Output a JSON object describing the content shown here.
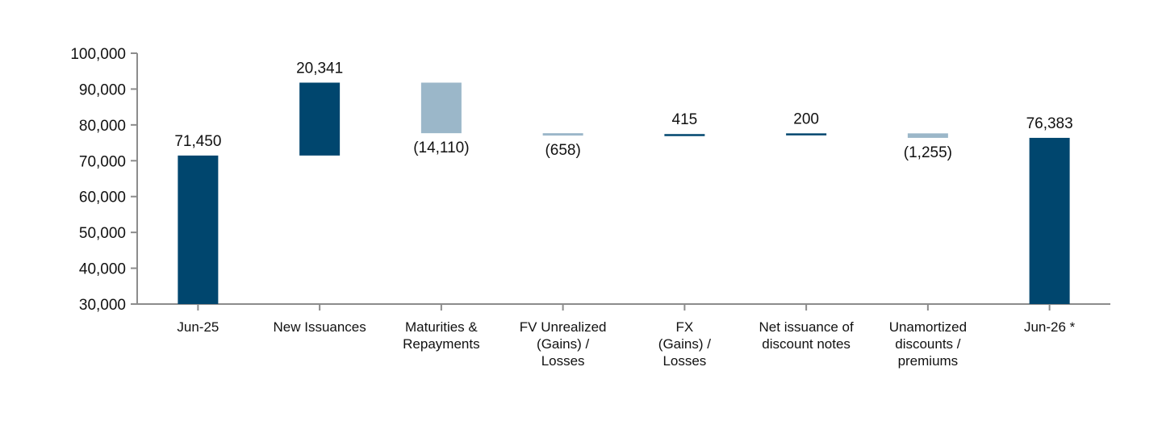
{
  "chart_data": {
    "type": "waterfall",
    "categories": [
      [
        "Jun-25"
      ],
      [
        "New Issuances"
      ],
      [
        "Maturities &",
        "Repayments"
      ],
      [
        "FV Unrealized",
        "(Gains) /",
        "Losses"
      ],
      [
        "FX",
        "(Gains) /",
        "Losses"
      ],
      [
        "Net issuance of",
        "discount notes"
      ],
      [
        "Unamortized",
        "discounts /",
        "premiums"
      ],
      [
        "Jun-26 *"
      ]
    ],
    "steps": [
      {
        "kind": "total",
        "value": 71450,
        "label": "71,450"
      },
      {
        "kind": "delta",
        "value": 20341,
        "label": "20,341"
      },
      {
        "kind": "delta",
        "value": -14110,
        "label": "(14,110)"
      },
      {
        "kind": "delta",
        "value": -658,
        "label": "(658)"
      },
      {
        "kind": "delta",
        "value": 415,
        "label": "415"
      },
      {
        "kind": "delta",
        "value": 200,
        "label": "200"
      },
      {
        "kind": "delta",
        "value": -1255,
        "label": "(1,255)"
      },
      {
        "kind": "total",
        "value": 76383,
        "label": "76,383"
      }
    ],
    "ylim": [
      30000,
      100000
    ],
    "yticks": [
      "30,000",
      "40,000",
      "50,000",
      "60,000",
      "70,000",
      "80,000",
      "90,000",
      "100,000"
    ],
    "ytick_values": [
      30000,
      40000,
      50000,
      60000,
      70000,
      80000,
      90000,
      100000
    ],
    "grid": false,
    "colors": {
      "increase_total": "#00466E",
      "decrease": "#9BB7C9",
      "axis": "#8C8C8C"
    }
  }
}
